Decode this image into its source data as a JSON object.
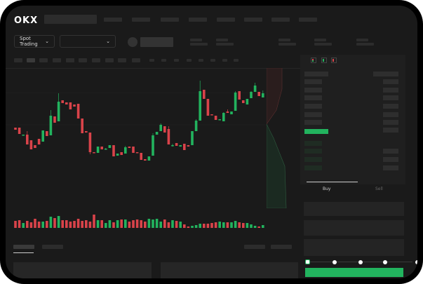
{
  "header": {
    "logo": "OKX"
  },
  "toolbar": {
    "market_select": "Spot Trading",
    "pair_select_chevron": "⌄"
  },
  "order_form": {
    "tabs": [
      "Buy",
      "Sell"
    ],
    "active_tab": "Buy",
    "slider_percent": 0,
    "slider_stops": 5
  },
  "colors": {
    "up": "#22b35e",
    "down": "#d9434a",
    "background": "#1a1a1a",
    "accent": "#22b35e"
  },
  "chart_data": {
    "type": "candlestick",
    "candles": [
      [
        118,
        115,
        118,
        115
      ],
      [
        118,
        109,
        118,
        109
      ],
      [
        107,
        108,
        108,
        107
      ],
      [
        108,
        94,
        113,
        94
      ],
      [
        100,
        87,
        100,
        87
      ],
      [
        93,
        89,
        93,
        89
      ],
      [
        102,
        94,
        102,
        94
      ],
      [
        98,
        114,
        114,
        98
      ],
      [
        113,
        106,
        113,
        106
      ],
      [
        107,
        135,
        143,
        107
      ],
      [
        134,
        125,
        134,
        125
      ],
      [
        127,
        155,
        167,
        127
      ],
      [
        157,
        153,
        157,
        153
      ],
      [
        154,
        151,
        154,
        151
      ],
      [
        154,
        144,
        154,
        144
      ],
      [
        151,
        148,
        151,
        148
      ],
      [
        152,
        131,
        152,
        131
      ],
      [
        131,
        110,
        131,
        110
      ],
      [
        113,
        111,
        113,
        111
      ],
      [
        111,
        83,
        111,
        80
      ],
      [
        83,
        82,
        83,
        82
      ],
      [
        82,
        91,
        91,
        82
      ],
      [
        91,
        87,
        91,
        87
      ],
      [
        88,
        88,
        89,
        87
      ],
      [
        89,
        93,
        93,
        89
      ],
      [
        93,
        77,
        93,
        77
      ],
      [
        78,
        81,
        81,
        78
      ],
      [
        83,
        79,
        83,
        79
      ],
      [
        81,
        90,
        92,
        81
      ],
      [
        91,
        89,
        91,
        89
      ],
      [
        91,
        82,
        91,
        82
      ],
      [
        83,
        82,
        83,
        82
      ],
      [
        82,
        72,
        82,
        72
      ],
      [
        73,
        71,
        73,
        71
      ],
      [
        71,
        77,
        77,
        71
      ],
      [
        78,
        107,
        110,
        78
      ],
      [
        108,
        112,
        112,
        108
      ],
      [
        113,
        122,
        124,
        113
      ],
      [
        120,
        111,
        120,
        111
      ],
      [
        116,
        94,
        120,
        94
      ],
      [
        92,
        93,
        95,
        91
      ],
      [
        96,
        92,
        96,
        92
      ],
      [
        91,
        93,
        93,
        91
      ],
      [
        95,
        86,
        95,
        86
      ],
      [
        93,
        91,
        93,
        91
      ],
      [
        93,
        113,
        113,
        93
      ],
      [
        113,
        128,
        130,
        113
      ],
      [
        128,
        170,
        185,
        128
      ],
      [
        172,
        159,
        172,
        159
      ],
      [
        159,
        135,
        159,
        135
      ],
      [
        137,
        136,
        137,
        136
      ],
      [
        135,
        129,
        135,
        129
      ],
      [
        130,
        130,
        130,
        130
      ],
      [
        127,
        139,
        140,
        127
      ],
      [
        141,
        139,
        144,
        139
      ],
      [
        137,
        141,
        141,
        137
      ],
      [
        142,
        168,
        170,
        142
      ],
      [
        170,
        158,
        170,
        158
      ],
      [
        157,
        153,
        157,
        153
      ],
      [
        151,
        159,
        159,
        151
      ],
      [
        160,
        169,
        170,
        160
      ],
      [
        169,
        178,
        182,
        169
      ],
      [
        169,
        163,
        169,
        163
      ],
      [
        161,
        167,
        171,
        161
      ]
    ],
    "volumes": [
      10,
      11,
      7,
      10,
      8,
      13,
      9,
      9,
      10,
      16,
      14,
      17,
      11,
      11,
      9,
      10,
      13,
      10,
      11,
      9,
      19,
      11,
      11,
      7,
      11,
      8,
      11,
      12,
      12,
      9,
      11,
      12,
      11,
      9,
      13,
      12,
      13,
      9,
      12,
      8,
      11,
      10,
      9,
      5,
      2,
      3,
      4,
      6,
      6,
      6,
      7,
      8,
      9,
      8,
      8,
      8,
      10,
      8,
      7,
      7,
      5,
      3,
      2,
      4
    ],
    "xlabel": "",
    "ylabel": ""
  }
}
